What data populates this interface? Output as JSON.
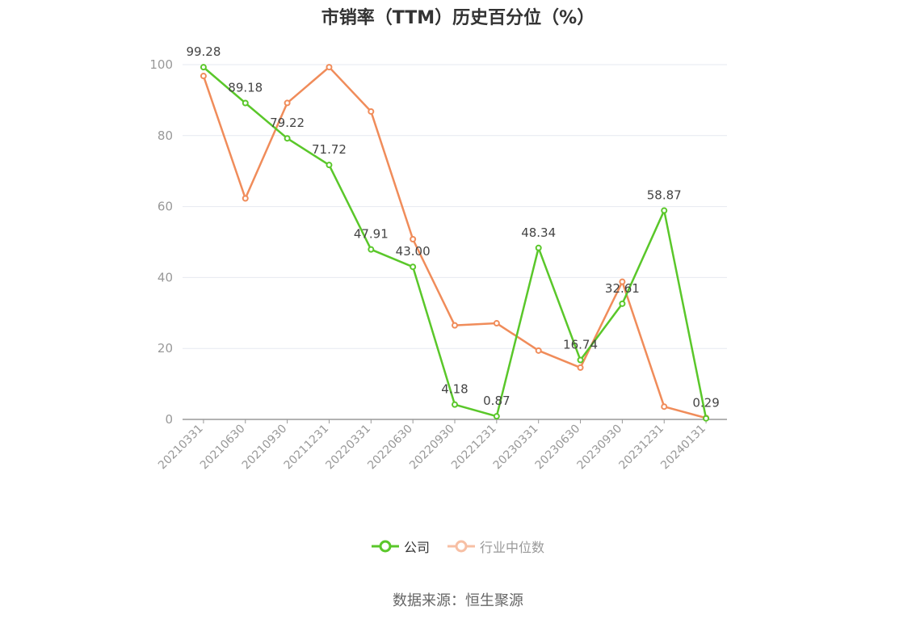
{
  "chart_data": {
    "type": "line",
    "title": "市销率（TTM）历史百分位（%）",
    "categories": [
      "20210331",
      "20210630",
      "20210930",
      "20211231",
      "20220331",
      "20220630",
      "20220930",
      "20221231",
      "20230331",
      "20230630",
      "20230930",
      "20231231",
      "20240131"
    ],
    "series": [
      {
        "name": "公司",
        "color": "#5ac72a",
        "values": [
          99.28,
          89.18,
          79.22,
          71.72,
          47.91,
          43.0,
          4.18,
          0.87,
          48.34,
          16.74,
          32.61,
          58.87,
          0.29
        ],
        "labels": [
          "99.28",
          "89.18",
          "79.22",
          "71.72",
          "47.91",
          "43.00",
          "4.18",
          "0.87",
          "48.34",
          "16.74",
          "32.61",
          "58.87",
          "0.29"
        ]
      },
      {
        "name": "行业中位数",
        "color": "#f08c5a",
        "values": [
          96.8,
          62.3,
          89.2,
          99.3,
          86.8,
          50.8,
          26.5,
          27.1,
          19.4,
          14.6,
          38.8,
          3.6,
          0.4
        ]
      }
    ],
    "ylim": [
      0,
      100
    ],
    "yticks": [
      0,
      20,
      40,
      60,
      80,
      100
    ],
    "grid": true,
    "legend": "bottom-center"
  },
  "legend_items": [
    "公司",
    "行业中位数"
  ],
  "source": "数据来源：恒生聚源"
}
